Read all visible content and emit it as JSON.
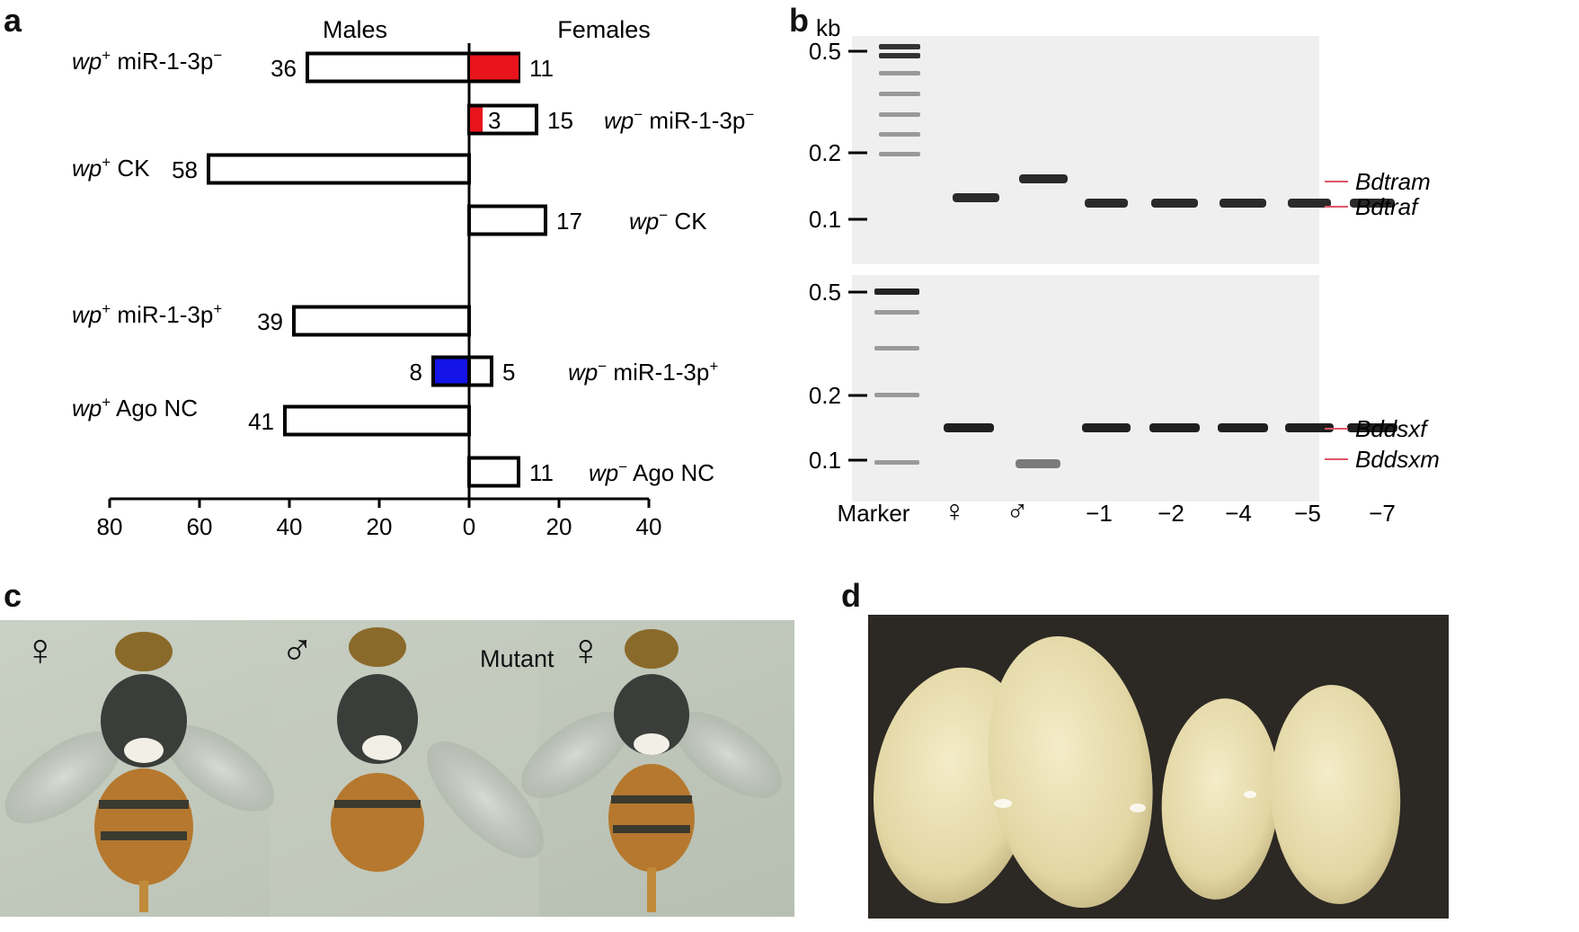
{
  "panels": {
    "a": "a",
    "b": "b",
    "c": "c",
    "d": "d"
  },
  "chart_data": {
    "type": "bar",
    "orientation": "horizontal-butterfly",
    "group_labels": {
      "left": "Males",
      "right": "Females"
    },
    "axis": {
      "range_left": [
        0,
        80
      ],
      "range_right": [
        0,
        40
      ],
      "ticks_left": [
        "80",
        "60",
        "40",
        "20",
        "0"
      ],
      "ticks_right": [
        "20",
        "40"
      ]
    },
    "rows": [
      {
        "genotype": "wp+ miR-1-3p−",
        "gene": "wp",
        "sup": "+",
        "rest": " miR-1-3p",
        "rest_sup": "−",
        "side": "left",
        "males": 36,
        "females": 11,
        "males_label": "36",
        "females_label": "11",
        "fill_female": 11,
        "fill_color": "#e8141b"
      },
      {
        "genotype": "wp− miR-1-3p−",
        "gene": "wp",
        "sup": "−",
        "rest": " miR-1-3p",
        "rest_sup": "−",
        "side": "right",
        "males": 0,
        "females": 15,
        "females_label": "15",
        "inner_label": "3",
        "fill_female": 3,
        "fill_color": "#e8141b"
      },
      {
        "genotype": "wp+ CK",
        "gene": "wp",
        "sup": "+",
        "rest": " CK",
        "rest_sup": "",
        "side": "left",
        "males": 58,
        "females": 0,
        "males_label": "58"
      },
      {
        "genotype": "wp− CK",
        "gene": "wp",
        "sup": "−",
        "rest": " CK",
        "rest_sup": "",
        "side": "right",
        "males": 0,
        "females": 17,
        "females_label": "17"
      },
      {
        "genotype": "wp+ miR-1-3p+",
        "gene": "wp",
        "sup": "+",
        "rest": " miR-1-3p",
        "rest_sup": "+",
        "side": "left",
        "males": 39,
        "females": 0,
        "males_label": "39"
      },
      {
        "genotype": "wp− miR-1-3p+",
        "gene": "wp",
        "sup": "−",
        "rest": " miR-1-3p",
        "rest_sup": "+",
        "side": "right",
        "males": 8,
        "females": 5,
        "males_label": "8",
        "females_label": "5",
        "fill_male": 8,
        "fill_color": "#1414e8"
      },
      {
        "genotype": "wp+ Ago NC",
        "gene": "wp",
        "sup": "+",
        "rest": " Ago NC",
        "rest_sup": "",
        "side": "left",
        "males": 41,
        "females": 0,
        "males_label": "41"
      },
      {
        "genotype": "wp− Ago NC",
        "gene": "wp",
        "sup": "−",
        "rest": " Ago NC",
        "rest_sup": "",
        "side": "right",
        "males": 0,
        "females": 11,
        "females_label": "11"
      }
    ]
  },
  "gel": {
    "unit": "kb",
    "sizes_top": [
      "0.5",
      "0.2",
      "0.1"
    ],
    "sizes_bottom": [
      "0.5",
      "0.2",
      "0.1"
    ],
    "gene_labels_top": [
      "Bdtram",
      "Bdtraf"
    ],
    "gene_labels_bottom": [
      "Bddsxf",
      "Bddsxm"
    ],
    "lanes": [
      "Marker",
      "♀",
      "♂",
      "−1",
      "−2",
      "−4",
      "−5",
      "−7"
    ]
  },
  "photo_c": {
    "labels": [
      {
        "text": "♀",
        "color": "#2a3fd1"
      },
      {
        "text": "♂",
        "color": "#9c1b1b"
      },
      {
        "text": "Mutant",
        "color": "#111111"
      },
      {
        "text": "♀",
        "color": "#2a3fd1"
      }
    ]
  }
}
